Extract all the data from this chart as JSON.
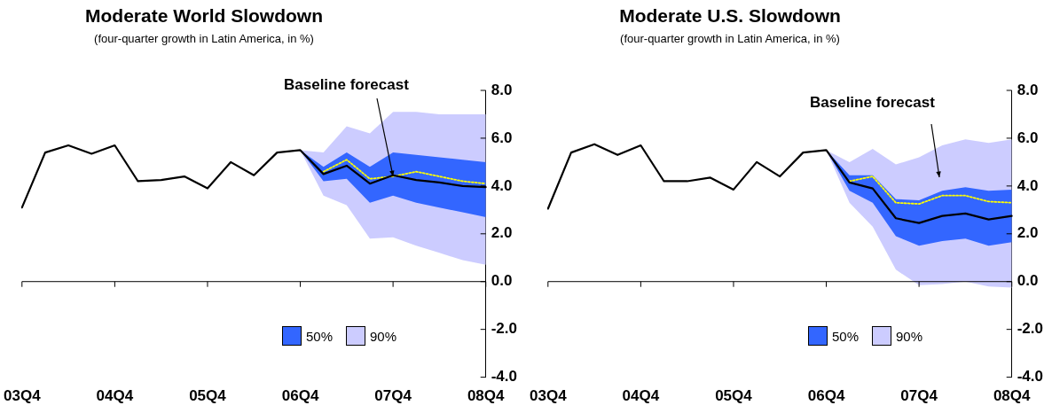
{
  "chart_data": [
    {
      "type": "line",
      "title": "Moderate World Slowdown",
      "subtitle": "(four-quarter growth in Latin America, in %)",
      "categories": [
        "03Q4",
        null,
        null,
        null,
        "04Q4",
        null,
        null,
        null,
        "05Q4",
        null,
        null,
        null,
        "06Q4",
        null,
        null,
        null,
        "07Q4",
        null,
        null,
        null,
        "08Q4"
      ],
      "series": [
        {
          "name": "90%",
          "type": "area",
          "color": "#ccccff",
          "values": [
            null,
            null,
            null,
            null,
            null,
            null,
            null,
            null,
            null,
            null,
            null,
            null,
            null,
            null,
            null,
            null,
            null,
            null,
            null,
            null,
            null
          ],
          "lower": [
            null,
            null,
            null,
            null,
            null,
            null,
            null,
            null,
            null,
            null,
            null,
            null,
            5.5,
            3.6,
            3.2,
            1.8,
            1.85,
            1.5,
            1.2,
            0.9,
            0.7
          ],
          "upper": [
            null,
            null,
            null,
            null,
            null,
            null,
            null,
            null,
            null,
            null,
            null,
            null,
            5.5,
            5.4,
            6.5,
            6.2,
            7.1,
            7.1,
            7.0,
            7.0,
            7.0
          ]
        },
        {
          "name": "50%",
          "type": "area",
          "color": "#3366ff",
          "values": [
            null,
            null,
            null,
            null,
            null,
            null,
            null,
            null,
            null,
            null,
            null,
            null,
            null,
            null,
            null,
            null,
            null,
            null,
            null,
            null,
            null
          ],
          "lower": [
            null,
            null,
            null,
            null,
            null,
            null,
            null,
            null,
            null,
            null,
            null,
            null,
            5.5,
            4.2,
            4.3,
            3.3,
            3.6,
            3.3,
            3.1,
            2.9,
            2.7
          ],
          "upper": [
            null,
            null,
            null,
            null,
            null,
            null,
            null,
            null,
            null,
            null,
            null,
            null,
            5.5,
            4.8,
            5.4,
            4.8,
            5.4,
            5.3,
            5.2,
            5.1,
            5.0
          ]
        },
        {
          "type": "line",
          "color": "#ffff00",
          "line_style": "dotted",
          "values": [
            null,
            null,
            null,
            null,
            null,
            null,
            null,
            null,
            null,
            null,
            null,
            null,
            null,
            4.6,
            5.1,
            4.3,
            4.4,
            4.6,
            4.4,
            4.2,
            4.1
          ]
        },
        {
          "type": "line",
          "color": "#000000",
          "line_style": "solid",
          "values": [
            3.1,
            5.4,
            5.7,
            5.35,
            5.7,
            4.2,
            4.25,
            4.4,
            3.9,
            5.0,
            4.45,
            5.4,
            5.5,
            4.5,
            4.85,
            4.1,
            4.45,
            4.25,
            4.15,
            4.0,
            3.95
          ]
        }
      ],
      "ylim": [
        -4,
        8
      ],
      "yticks": [
        {
          "value": -4,
          "label": "-4.0"
        },
        {
          "value": -2,
          "label": "-2.0"
        },
        {
          "value": 0,
          "label": "0.0"
        },
        {
          "value": 2,
          "label": "2.0"
        },
        {
          "value": 4,
          "label": "4.0"
        },
        {
          "value": 6,
          "label": "6.0"
        },
        {
          "value": 8,
          "label": "8.0"
        }
      ],
      "annotations": [
        {
          "text": "Baseline forecast",
          "x": "07Q4",
          "y": 4.4
        }
      ],
      "legend": "bottom",
      "marker": "none"
    },
    {
      "type": "line",
      "title": "Moderate U.S. Slowdown",
      "subtitle": "(four-quarter growth in Latin America, in %)",
      "categories": [
        "03Q4",
        null,
        null,
        null,
        "04Q4",
        null,
        null,
        null,
        "05Q4",
        null,
        null,
        null,
        "06Q4",
        null,
        null,
        null,
        "07Q4",
        null,
        null,
        null,
        "08Q4"
      ],
      "series": [
        {
          "name": "90%",
          "type": "area",
          "color": "#ccccff",
          "values": [
            null,
            null,
            null,
            null,
            null,
            null,
            null,
            null,
            null,
            null,
            null,
            null,
            null,
            null,
            null,
            null,
            null,
            null,
            null,
            null,
            null
          ],
          "lower": [
            null,
            null,
            null,
            null,
            null,
            null,
            null,
            null,
            null,
            null,
            null,
            null,
            5.5,
            3.3,
            2.3,
            0.5,
            -0.15,
            -0.1,
            0.0,
            -0.2,
            -0.25
          ],
          "upper": [
            null,
            null,
            null,
            null,
            null,
            null,
            null,
            null,
            null,
            null,
            null,
            null,
            5.5,
            5.0,
            5.55,
            4.9,
            5.2,
            5.7,
            5.95,
            5.8,
            5.95
          ]
        },
        {
          "name": "50%",
          "type": "area",
          "color": "#3366ff",
          "values": [
            null,
            null,
            null,
            null,
            null,
            null,
            null,
            null,
            null,
            null,
            null,
            null,
            null,
            null,
            null,
            null,
            null,
            null,
            null,
            null,
            null
          ],
          "lower": [
            null,
            null,
            null,
            null,
            null,
            null,
            null,
            null,
            null,
            null,
            null,
            null,
            5.5,
            3.8,
            3.3,
            1.9,
            1.5,
            1.7,
            1.8,
            1.5,
            1.65
          ],
          "upper": [
            null,
            null,
            null,
            null,
            null,
            null,
            null,
            null,
            null,
            null,
            null,
            null,
            5.5,
            4.45,
            4.45,
            3.45,
            3.4,
            3.8,
            3.95,
            3.8,
            3.85
          ]
        },
        {
          "type": "line",
          "color": "#ffff00",
          "line_style": "dotted",
          "values": [
            null,
            null,
            null,
            null,
            null,
            null,
            null,
            null,
            null,
            null,
            null,
            null,
            null,
            4.2,
            4.4,
            3.3,
            3.25,
            3.6,
            3.6,
            3.35,
            3.3
          ]
        },
        {
          "type": "line",
          "color": "#000000",
          "line_style": "solid",
          "values": [
            3.05,
            5.4,
            5.75,
            5.3,
            5.7,
            4.2,
            4.2,
            4.35,
            3.85,
            5.0,
            4.4,
            5.4,
            5.5,
            4.15,
            3.9,
            2.65,
            2.45,
            2.75,
            2.85,
            2.6,
            2.75
          ]
        }
      ],
      "ylim": [
        -4,
        8
      ],
      "yticks": [
        {
          "value": -4,
          "label": "-4.0"
        },
        {
          "value": -2,
          "label": "-2.0"
        },
        {
          "value": 0,
          "label": "0.0"
        },
        {
          "value": 2,
          "label": "2.0"
        },
        {
          "value": 4,
          "label": "4.0"
        },
        {
          "value": 6,
          "label": "6.0"
        },
        {
          "value": 8,
          "label": "8.0"
        }
      ],
      "annotations": [
        "Baseline forecast"
      ],
      "legend": "bottom",
      "marker": "none"
    }
  ]
}
